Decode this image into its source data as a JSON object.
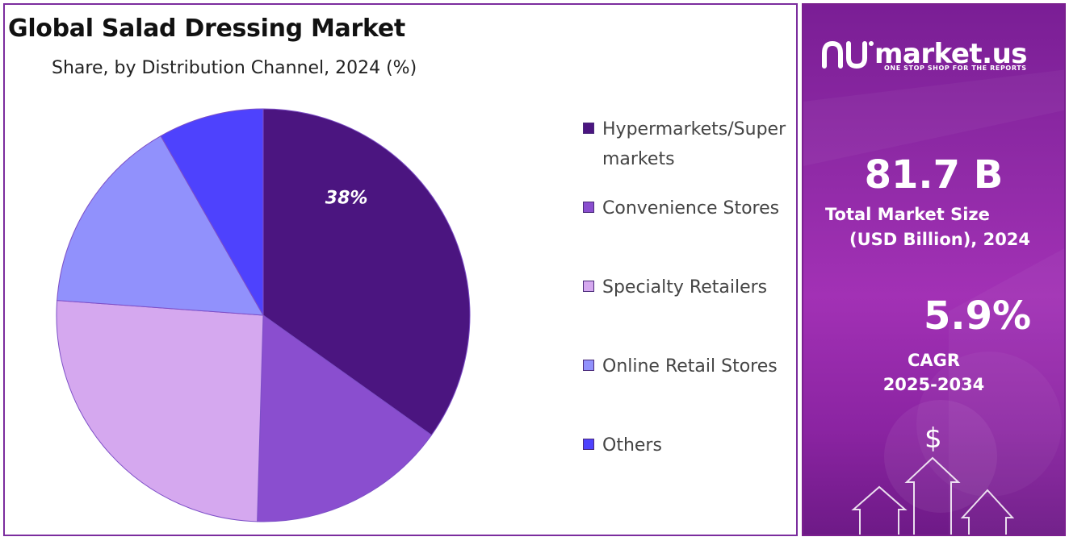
{
  "chart_data": {
    "type": "pie",
    "title": "Global Salad Dressing Market",
    "subtitle": "Share, by Distribution Channel, 2024 (%)",
    "slices": [
      {
        "label": "Hypermarkets/Supermarkets",
        "value": 38,
        "color": "#4b1580",
        "show_label": true
      },
      {
        "label": "Convenience Stores",
        "value": 17,
        "color": "#8a4ecf",
        "show_label": false
      },
      {
        "label": "Specialty Retailers",
        "value": 28,
        "color": "#d5a8ef",
        "show_label": false
      },
      {
        "label": "Online Retail Stores",
        "value": 17,
        "color": "#9191fc",
        "show_label": false
      },
      {
        "label": "Others",
        "value": 9,
        "color": "#4e42fd",
        "show_label": false
      }
    ],
    "legend_position": "right"
  },
  "side_panel": {
    "brand": "market.us",
    "tagline": "ONE STOP SHOP FOR THE REPORTS",
    "market_size_value": "81.7 B",
    "market_size_label_1": "Total Market Size",
    "market_size_label_2": "(USD Billion), 2024",
    "cagr_value": "5.9%",
    "cagr_label_1": "CAGR",
    "cagr_label_2": "2025-2034",
    "currency_symbol": "$"
  }
}
